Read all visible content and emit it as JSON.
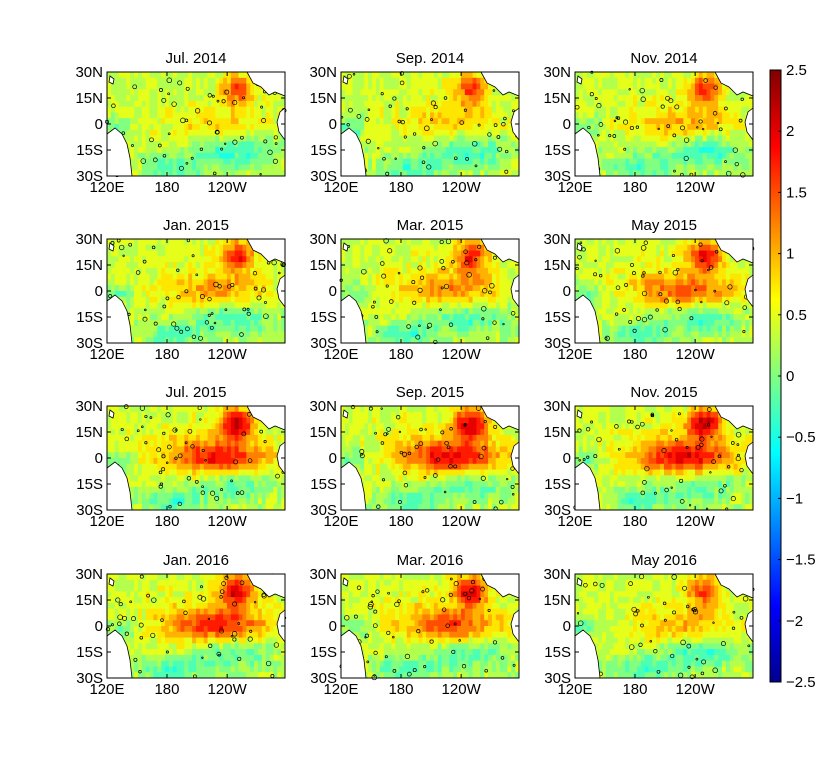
{
  "chart_data": {
    "type": "heatmap",
    "title": "",
    "panels": [
      {
        "title": "Jul. 2014",
        "intensity": 0.3
      },
      {
        "title": "Sep. 2014",
        "intensity": 0.35
      },
      {
        "title": "Nov. 2014",
        "intensity": 0.45
      },
      {
        "title": "Jan. 2015",
        "intensity": 0.55
      },
      {
        "title": "Mar. 2015",
        "intensity": 0.6
      },
      {
        "title": "May 2015",
        "intensity": 0.75
      },
      {
        "title": "Jul. 2015",
        "intensity": 1.0
      },
      {
        "title": "Sep. 2015",
        "intensity": 1.05
      },
      {
        "title": "Nov. 2015",
        "intensity": 1.05
      },
      {
        "title": "Jan. 2016",
        "intensity": 0.95
      },
      {
        "title": "Mar. 2016",
        "intensity": 0.8
      },
      {
        "title": "May 2016",
        "intensity": 0.45
      }
    ],
    "x_ticks": [
      "120E",
      "180",
      "120W"
    ],
    "y_ticks": [
      "30N",
      "15N",
      "0",
      "15S",
      "30S"
    ],
    "colorbar": {
      "range": [
        -2.5,
        2.5
      ],
      "ticks": [
        "2.5",
        "2",
        "1.5",
        "1",
        "0.5",
        "0",
        "−0.5",
        "−1",
        "−1.5",
        "−2",
        "−2.5"
      ],
      "tick_values": [
        2.5,
        2,
        1.5,
        1,
        0.5,
        0,
        -0.5,
        -1,
        -1.5,
        -2,
        -2.5
      ],
      "colormap": [
        "#00008f",
        "#0000ff",
        "#0080ff",
        "#00ffff",
        "#80ff80",
        "#ffff00",
        "#ff8000",
        "#ff0000",
        "#800000"
      ]
    }
  }
}
